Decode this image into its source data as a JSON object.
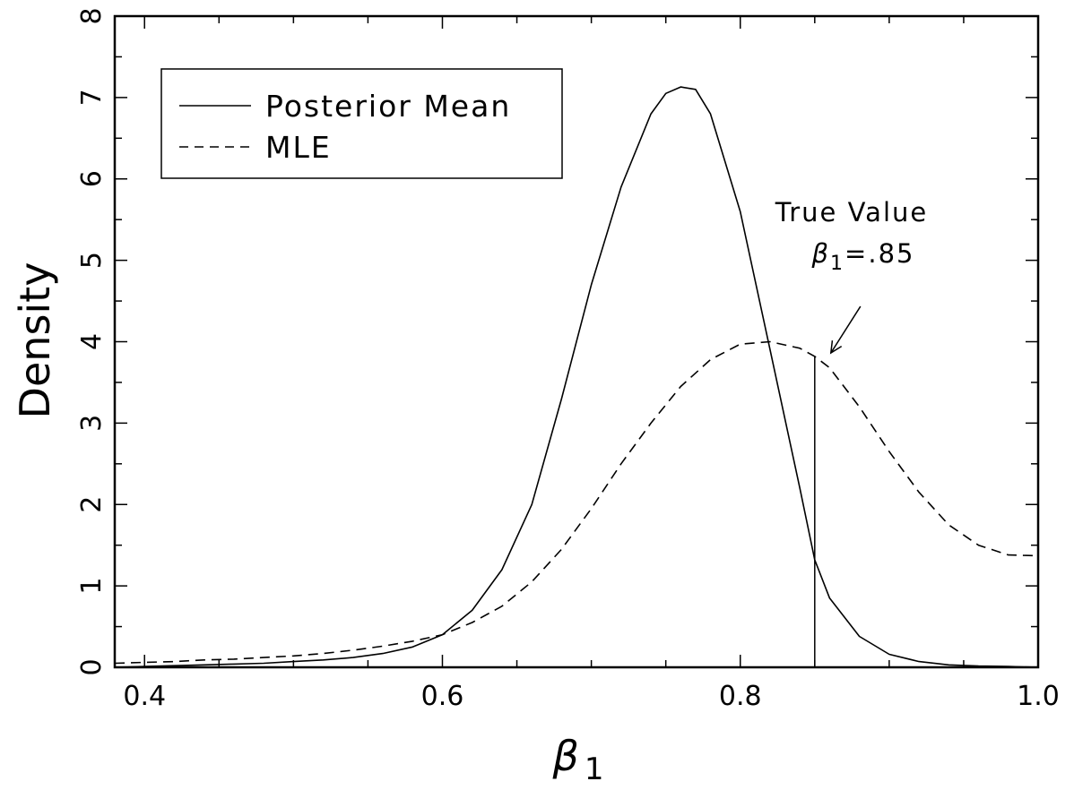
{
  "chart_data": {
    "type": "line",
    "xlabel": "β",
    "xlabel_sub": "1",
    "ylabel": "Density",
    "xlim": [
      0.38,
      1.0
    ],
    "ylim": [
      0,
      8
    ],
    "x_ticks": [
      0.4,
      0.6,
      0.8,
      1.0
    ],
    "x_tick_labels": [
      "0.4",
      "0.6",
      "0.8",
      "1.0"
    ],
    "y_ticks": [
      0,
      1,
      2,
      3,
      4,
      5,
      6,
      7,
      8
    ],
    "y_tick_labels": [
      "0",
      "1",
      "2",
      "3",
      "4",
      "5",
      "6",
      "7",
      "8"
    ],
    "grid": false,
    "legend": {
      "position": "top-left",
      "entries": [
        {
          "label": "Posterior Mean",
          "style": "solid"
        },
        {
          "label": "MLE",
          "style": "dashed"
        }
      ]
    },
    "series": [
      {
        "name": "Posterior Mean",
        "style": "solid",
        "color": "#000000",
        "x": [
          0.38,
          0.4,
          0.42,
          0.44,
          0.46,
          0.48,
          0.5,
          0.52,
          0.54,
          0.56,
          0.58,
          0.6,
          0.62,
          0.64,
          0.66,
          0.68,
          0.7,
          0.72,
          0.74,
          0.75,
          0.76,
          0.77,
          0.78,
          0.8,
          0.82,
          0.84,
          0.85,
          0.86,
          0.88,
          0.9,
          0.92,
          0.94,
          0.96,
          0.98,
          1.0
        ],
        "y": [
          0.0,
          0.01,
          0.02,
          0.03,
          0.04,
          0.05,
          0.07,
          0.09,
          0.12,
          0.17,
          0.25,
          0.4,
          0.7,
          1.2,
          2.0,
          3.3,
          4.7,
          5.9,
          6.8,
          7.05,
          7.13,
          7.1,
          6.8,
          5.6,
          3.9,
          2.2,
          1.32,
          0.85,
          0.38,
          0.16,
          0.07,
          0.03,
          0.015,
          0.01,
          0.0
        ]
      },
      {
        "name": "MLE",
        "style": "dashed",
        "color": "#000000",
        "x": [
          0.38,
          0.4,
          0.42,
          0.44,
          0.46,
          0.48,
          0.5,
          0.52,
          0.54,
          0.56,
          0.58,
          0.6,
          0.62,
          0.64,
          0.66,
          0.68,
          0.7,
          0.72,
          0.74,
          0.76,
          0.78,
          0.8,
          0.82,
          0.84,
          0.85,
          0.86,
          0.88,
          0.9,
          0.92,
          0.94,
          0.96,
          0.98,
          1.0
        ],
        "y": [
          0.05,
          0.06,
          0.07,
          0.09,
          0.1,
          0.12,
          0.14,
          0.17,
          0.21,
          0.26,
          0.32,
          0.4,
          0.55,
          0.75,
          1.05,
          1.45,
          1.95,
          2.5,
          3.0,
          3.45,
          3.78,
          3.97,
          4.0,
          3.92,
          3.82,
          3.68,
          3.2,
          2.65,
          2.15,
          1.75,
          1.5,
          1.38,
          1.37
        ]
      }
    ],
    "annotation": {
      "line1": "True Value",
      "line2_symbol": "β",
      "line2_sub": "1",
      "line2_rest": "=.85",
      "x": 0.85,
      "y_end": 3.82,
      "arrow_to_y": 3.95
    }
  }
}
